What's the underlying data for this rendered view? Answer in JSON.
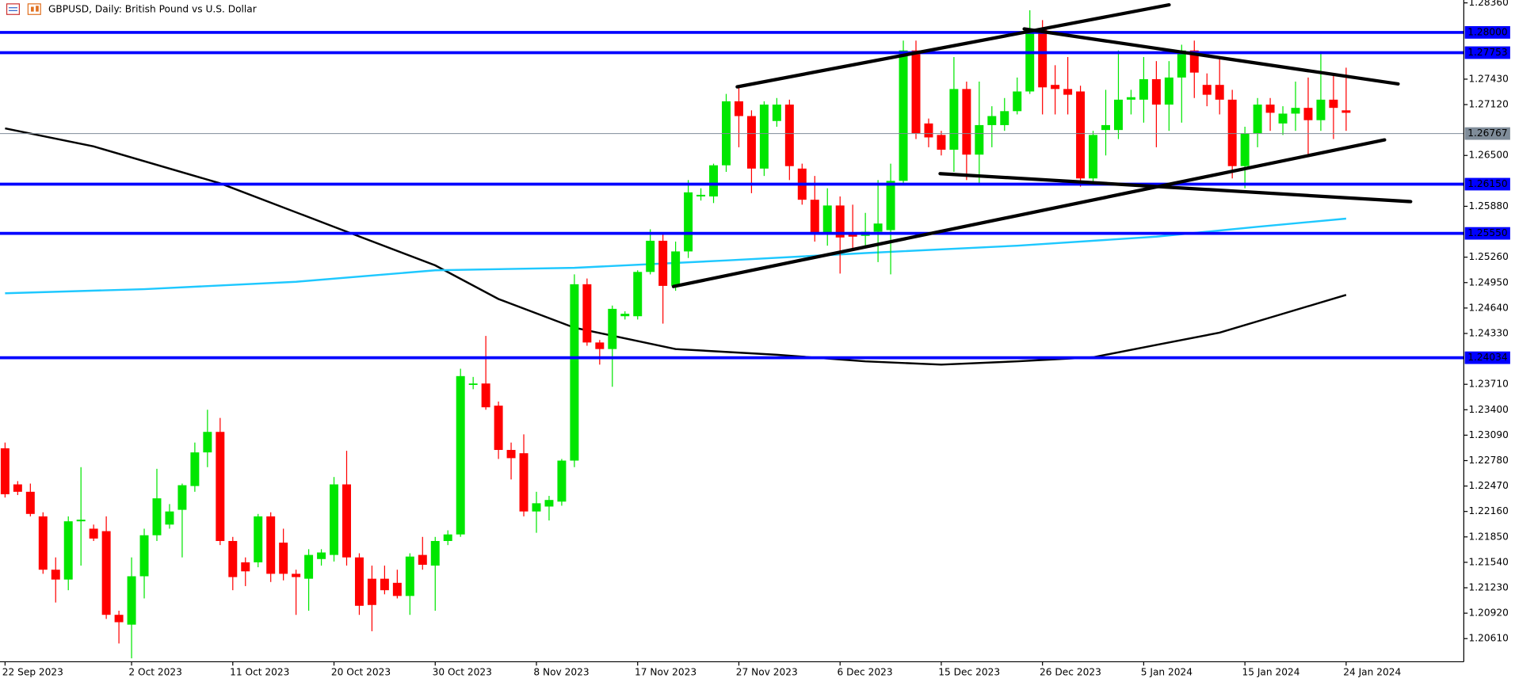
{
  "chart_data": {
    "type": "candlestick",
    "title": "GBPUSD, Daily:  British Pound vs U.S. Dollar",
    "up_color": "#00e600",
    "down_color": "#ff0000",
    "xlim": [
      -0.4,
      115.3
    ],
    "ylim": [
      1.20328,
      1.28395
    ],
    "yticks": [
      {
        "value": 1.2836,
        "label": "1.28360"
      },
      {
        "value": 1.2743,
        "label": "1.27430"
      },
      {
        "value": 1.2712,
        "label": "1.27120"
      },
      {
        "value": 1.265,
        "label": "1.26500"
      },
      {
        "value": 1.2588,
        "label": "1.25880"
      },
      {
        "value": 1.2526,
        "label": "1.25260"
      },
      {
        "value": 1.2495,
        "label": "1.24950"
      },
      {
        "value": 1.2464,
        "label": "1.24640"
      },
      {
        "value": 1.2433,
        "label": "1.24330"
      },
      {
        "value": 1.2371,
        "label": "1.23710"
      },
      {
        "value": 1.234,
        "label": "1.23400"
      },
      {
        "value": 1.2309,
        "label": "1.23090"
      },
      {
        "value": 1.2278,
        "label": "1.22780"
      },
      {
        "value": 1.2247,
        "label": "1.22470"
      },
      {
        "value": 1.2216,
        "label": "1.22160"
      },
      {
        "value": 1.2185,
        "label": "1.21850"
      },
      {
        "value": 1.2154,
        "label": "1.21540"
      },
      {
        "value": 1.2123,
        "label": "1.21230"
      },
      {
        "value": 1.2092,
        "label": "1.20920"
      },
      {
        "value": 1.2061,
        "label": "1.20610"
      }
    ],
    "x_labels": [
      {
        "index": 0,
        "label": "22 Sep 2023"
      },
      {
        "index": 10,
        "label": "2 Oct 2023"
      },
      {
        "index": 18,
        "label": "11 Oct 2023"
      },
      {
        "index": 26,
        "label": "20 Oct 2023"
      },
      {
        "index": 34,
        "label": "30 Oct 2023"
      },
      {
        "index": 42,
        "label": "8 Nov 2023"
      },
      {
        "index": 50,
        "label": "17 Nov 2023"
      },
      {
        "index": 58,
        "label": "27 Nov 2023"
      },
      {
        "index": 66,
        "label": "6 Dec 2023"
      },
      {
        "index": 74,
        "label": "15 Dec 2023"
      },
      {
        "index": 82,
        "label": "26 Dec 2023"
      },
      {
        "index": 90,
        "label": "5 Jan 2024"
      },
      {
        "index": 98,
        "label": "15 Jan 2024"
      },
      {
        "index": 106,
        "label": "24 Jan 2024"
      }
    ],
    "open": [
      1.2293,
      1.2249,
      1.224,
      1.221,
      1.2145,
      1.2133,
      1.2204,
      1.2195,
      1.2192,
      1.209,
      1.2078,
      1.2137,
      1.2187,
      1.22,
      1.2218,
      1.2247,
      1.2288,
      1.2313,
      1.218,
      1.2154,
      1.2154,
      1.221,
      1.2178,
      1.214,
      1.2134,
      1.2158,
      1.2163,
      1.2249,
      1.216,
      1.2134,
      1.2134,
      1.2129,
      1.2113,
      1.2163,
      1.215,
      1.218,
      1.2188,
      1.2371,
      1.2372,
      1.2345,
      1.2291,
      1.2287,
      1.2216,
      1.2222,
      1.2228,
      1.2278,
      1.2493,
      1.2422,
      1.2414,
      1.2454,
      1.2454,
      1.2508,
      1.2546,
      1.2491,
      1.2533,
      1.26,
      1.26,
      1.2638,
      1.2716,
      1.2698,
      1.2634,
      1.2692,
      1.2712,
      1.2634,
      1.2596,
      1.2555,
      1.2589,
      1.2554,
      1.2552,
      1.2557,
      1.2559,
      1.2619,
      1.2778,
      1.2689,
      1.2675,
      1.2657,
      1.2731,
      1.2651,
      1.2687,
      1.2687,
      1.2704,
      1.2728,
      1.2804,
      1.2736,
      1.2731,
      1.2728,
      1.2622,
      1.2681,
      1.2681,
      1.2718,
      1.2718,
      1.2743,
      1.2712,
      1.2745,
      1.2778,
      1.2736,
      1.2736,
      1.2718,
      1.2637,
      1.2677,
      1.2712,
      1.2689,
      1.2701,
      1.2708,
      1.2693,
      1.2718,
      1.2705
    ],
    "high": [
      1.23,
      1.2253,
      1.225,
      1.2215,
      1.216,
      1.221,
      1.227,
      1.22,
      1.221,
      1.2095,
      1.216,
      1.2195,
      1.2268,
      1.2225,
      1.225,
      1.23,
      1.234,
      1.233,
      1.2185,
      1.216,
      1.2213,
      1.2215,
      1.2195,
      1.2145,
      1.217,
      1.217,
      1.2258,
      1.229,
      1.2165,
      1.215,
      1.215,
      1.2145,
      1.2165,
      1.2185,
      1.2185,
      1.2193,
      1.239,
      1.238,
      1.243,
      1.235,
      1.23,
      1.231,
      1.224,
      1.2235,
      1.228,
      1.2505,
      1.25,
      1.2425,
      1.2467,
      1.246,
      1.251,
      1.256,
      1.2555,
      1.2545,
      1.262,
      1.261,
      1.264,
      1.2725,
      1.2733,
      1.2705,
      1.2716,
      1.272,
      1.2718,
      1.264,
      1.2625,
      1.261,
      1.26,
      1.259,
      1.258,
      1.262,
      1.264,
      1.279,
      1.279,
      1.2695,
      1.268,
      1.277,
      1.274,
      1.274,
      1.271,
      1.272,
      1.2745,
      1.2827,
      1.2815,
      1.276,
      1.277,
      1.2735,
      1.268,
      1.273,
      1.2778,
      1.273,
      1.277,
      1.2765,
      1.2765,
      1.2785,
      1.279,
      1.275,
      1.277,
      1.273,
      1.2685,
      1.272,
      1.272,
      1.271,
      1.274,
      1.2745,
      1.2777,
      1.2748,
      1.2757
    ],
    "low": [
      1.2233,
      1.2236,
      1.221,
      1.214,
      1.2105,
      1.212,
      1.215,
      1.218,
      1.2085,
      1.2055,
      1.2037,
      1.211,
      1.218,
      1.2195,
      1.216,
      1.224,
      1.227,
      1.2175,
      1.212,
      1.2125,
      1.2148,
      1.213,
      1.2132,
      1.209,
      1.2095,
      1.215,
      1.2155,
      1.215,
      1.209,
      1.207,
      1.2115,
      1.211,
      1.209,
      1.2145,
      1.2095,
      1.2175,
      1.2185,
      1.2365,
      1.234,
      1.228,
      1.2255,
      1.221,
      1.219,
      1.2205,
      1.2223,
      1.227,
      1.2418,
      1.2395,
      1.2368,
      1.245,
      1.245,
      1.2505,
      1.2445,
      1.2485,
      1.2525,
      1.2595,
      1.2592,
      1.263,
      1.266,
      1.2604,
      1.2625,
      1.2685,
      1.262,
      1.259,
      1.2545,
      1.254,
      1.2506,
      1.2535,
      1.254,
      1.252,
      1.2505,
      1.2615,
      1.267,
      1.266,
      1.265,
      1.263,
      1.262,
      1.2615,
      1.266,
      1.268,
      1.27,
      1.2725,
      1.27,
      1.27,
      1.27,
      1.2612,
      1.2618,
      1.265,
      1.267,
      1.27,
      1.269,
      1.266,
      1.268,
      1.269,
      1.272,
      1.271,
      1.27,
      1.2622,
      1.261,
      1.266,
      1.268,
      1.2675,
      1.268,
      1.265,
      1.268,
      1.267,
      1.268
    ],
    "close": [
      1.2237,
      1.224,
      1.2213,
      1.2145,
      1.2133,
      1.2204,
      1.2206,
      1.2183,
      1.209,
      1.2081,
      1.2137,
      1.2187,
      1.2232,
      1.2216,
      1.2248,
      1.2288,
      1.2313,
      1.218,
      1.2136,
      1.2143,
      1.221,
      1.214,
      1.214,
      1.2136,
      1.2163,
      1.2166,
      1.2249,
      1.216,
      1.2101,
      1.2102,
      1.212,
      1.2113,
      1.2161,
      1.2151,
      1.218,
      1.2188,
      1.2381,
      1.2372,
      1.2343,
      1.2291,
      1.2281,
      1.2216,
      1.2226,
      1.223,
      1.2278,
      1.2493,
      1.2422,
      1.2414,
      1.2463,
      1.2457,
      1.2508,
      1.2546,
      1.2491,
      1.2533,
      1.2605,
      1.2602,
      1.2638,
      1.2716,
      1.2698,
      1.2634,
      1.2712,
      1.2712,
      1.2637,
      1.2596,
      1.2555,
      1.2589,
      1.255,
      1.2551,
      1.2557,
      1.2567,
      1.2619,
      1.2778,
      1.2677,
      1.2672,
      1.2657,
      1.2731,
      1.2651,
      1.2687,
      1.2698,
      1.2704,
      1.2728,
      1.2804,
      1.2733,
      1.2731,
      1.2724,
      1.2622,
      1.2675,
      1.2687,
      1.2718,
      1.2721,
      1.2743,
      1.2712,
      1.2745,
      1.2778,
      1.2751,
      1.2724,
      1.2718,
      1.2637,
      1.2677,
      1.2712,
      1.2702,
      1.2701,
      1.2708,
      1.2693,
      1.2718,
      1.2708,
      1.2702
    ],
    "moving_averages": [
      {
        "color": "#000000",
        "x": [
          0,
          7,
          17,
          26,
          34,
          39,
          45,
          53,
          61,
          68,
          74,
          80,
          86,
          91,
          96,
          101,
          106
        ],
        "values": [
          1.2683,
          1.2661,
          1.2616,
          1.2563,
          1.2516,
          1.2475,
          1.244,
          1.2414,
          1.2407,
          1.2399,
          1.2395,
          1.2399,
          1.2404,
          1.2419,
          1.2434,
          1.2457,
          1.248
        ]
      },
      {
        "color": "#1ec8ff",
        "x": [
          0,
          11,
          23,
          34,
          45,
          57,
          68,
          80,
          91,
          99,
          106
        ],
        "values": [
          1.2482,
          1.2487,
          1.2496,
          1.251,
          1.2513,
          1.2522,
          1.2531,
          1.254,
          1.2551,
          1.2563,
          1.2573
        ]
      }
    ],
    "level_color": "#0000ff",
    "levels": [
      {
        "value": 1.28,
        "label": "1.28000"
      },
      1.27753,
      {
        "value": 1.2615,
        "label": "1.26150"
      },
      {
        "value": 1.2555,
        "label": "1.25550"
      },
      1.24034
    ],
    "current_price_color": "#7f8c99",
    "current_price": 1.26767
  }
}
